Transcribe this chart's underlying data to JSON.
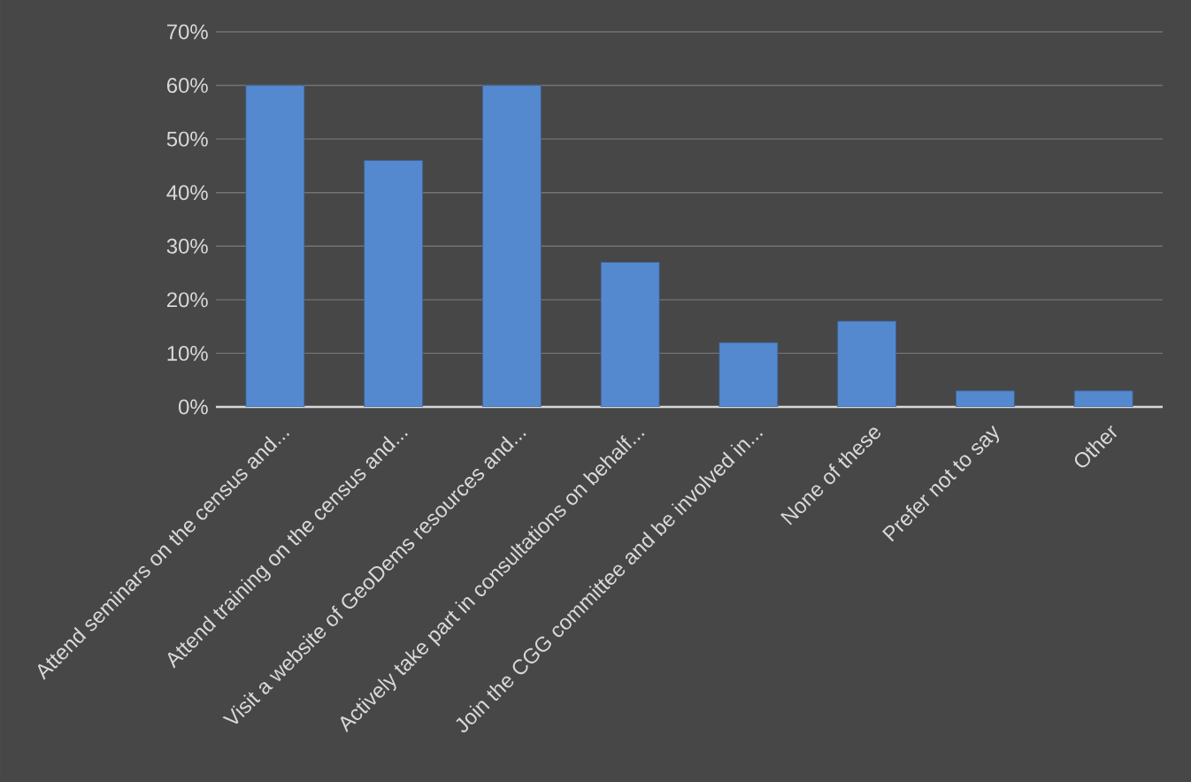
{
  "chart_data": {
    "type": "bar",
    "categories": [
      "Attend seminars on the census and...",
      "Attend training on the census and...",
      "Visit a website of GeoDems resources and...",
      "Actively take part in consultations on behalf...",
      "Join the CGG committee and be involved in...",
      "None of these",
      "Prefer not to say",
      "Other"
    ],
    "values": [
      60,
      46,
      60,
      27,
      12,
      16,
      3,
      3
    ],
    "color": "#5589cf",
    "ylim": [
      0,
      70
    ],
    "yticks": [
      {
        "value": 0,
        "label": "0%"
      },
      {
        "value": 10,
        "label": "10%"
      },
      {
        "value": 20,
        "label": "20%"
      },
      {
        "value": 30,
        "label": "30%"
      },
      {
        "value": 40,
        "label": "40%"
      },
      {
        "value": 50,
        "label": "50%"
      },
      {
        "value": 60,
        "label": "60%"
      },
      {
        "value": 70,
        "label": "70%"
      }
    ],
    "grid": "y",
    "legend": false
  }
}
